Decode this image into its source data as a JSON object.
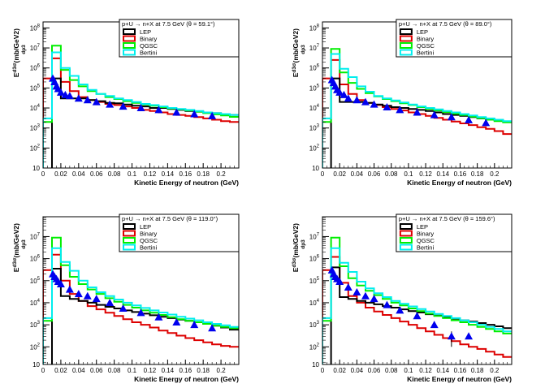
{
  "figure": {
    "legend_entries": [
      {
        "name": "LEP",
        "color": "#000000"
      },
      {
        "name": "Binary",
        "color": "#dd0000"
      },
      {
        "name": "QGSC",
        "color": "#00ee00"
      },
      {
        "name": "Bertini",
        "color": "#00eeee"
      }
    ],
    "marker_color": "#0000ee",
    "ylabel_main": "E",
    "ylabel_sup": "d",
    "ylabel_sup2": "3",
    "ylabel_sup3": "σ",
    "ylabel_sub": "dp",
    "ylabel_sub2": "3",
    "ylabel_unit": "(mb/GeV",
    "ylabel_unit_sup": "2",
    "ylabel_unit_end": ")"
  },
  "chart_data": [
    {
      "type": "line",
      "title": "p+U → n+X at 7.5 GeV (θ =  59.1°)",
      "xlabel": "Kinetic Energy of neutron (GeV)",
      "ylabel": "E d3σ/dp3 (mb/GeV2)",
      "xlim": [
        0,
        0.22
      ],
      "ylim": [
        10,
        100000000
      ],
      "yscale": "log",
      "x_ticks": [
        0,
        0.02,
        0.04,
        0.06,
        0.08,
        0.1,
        0.12,
        0.14,
        0.16,
        0.18,
        0.2
      ],
      "x_tick_labels": [
        "0",
        "0.02",
        "0.04",
        "0.06",
        "0.08",
        "0.1",
        "0.12",
        "0.14",
        "0.16",
        "0.18",
        "0.2"
      ],
      "y_tick_labels": [
        "10",
        "10^2",
        "10^3",
        "10^4",
        "10^5",
        "10^6",
        "10^7",
        "10^8"
      ],
      "grid": false,
      "legend_position": "top-right",
      "bin_edges": [
        0,
        0.01,
        0.02,
        0.03,
        0.04,
        0.05,
        0.06,
        0.07,
        0.08,
        0.09,
        0.1,
        0.11,
        0.12,
        0.13,
        0.14,
        0.15,
        0.16,
        0.17,
        0.18,
        0.19,
        0.2,
        0.21,
        0.22
      ],
      "series": [
        {
          "name": "LEP",
          "values": [
            null,
            300000,
            30000,
            30000,
            30000,
            25000,
            22000,
            18000,
            17000,
            15000,
            13000,
            12000,
            10000,
            10000,
            9000,
            8000,
            7000,
            6500,
            6000,
            5500,
            5000,
            4500
          ]
        },
        {
          "name": "Binary",
          "values": [
            300000,
            3000000,
            200000,
            70000,
            35000,
            25000,
            20000,
            16000,
            14000,
            12000,
            10000,
            8000,
            7000,
            6000,
            5000,
            4500,
            4000,
            3500,
            3000,
            2600,
            2200,
            2000
          ]
        },
        {
          "name": "QGSC",
          "values": [
            2000,
            13000000,
            800000,
            250000,
            120000,
            70000,
            50000,
            35000,
            28000,
            22000,
            18000,
            15000,
            13000,
            11000,
            9500,
            8500,
            7500,
            6500,
            5500,
            4800,
            4200,
            3600
          ]
        },
        {
          "name": "Bertini",
          "values": [
            3000,
            6000000,
            1000000,
            400000,
            150000,
            80000,
            50000,
            40000,
            30000,
            25000,
            20000,
            16000,
            14000,
            12000,
            10000,
            9000,
            8000,
            7000,
            6000,
            5500,
            5000,
            4500
          ]
        }
      ],
      "data_points": [
        {
          "x": 0.011,
          "y": 300000
        },
        {
          "x": 0.013,
          "y": 200000
        },
        {
          "x": 0.015,
          "y": 120000
        },
        {
          "x": 0.017,
          "y": 90000
        },
        {
          "x": 0.02,
          "y": 60000
        },
        {
          "x": 0.025,
          "y": 45000
        },
        {
          "x": 0.03,
          "y": 40000
        },
        {
          "x": 0.04,
          "y": 30000
        },
        {
          "x": 0.05,
          "y": 25000
        },
        {
          "x": 0.06,
          "y": 20000
        },
        {
          "x": 0.075,
          "y": 15000
        },
        {
          "x": 0.09,
          "y": 12000
        },
        {
          "x": 0.11,
          "y": 10000
        },
        {
          "x": 0.13,
          "y": 8000
        },
        {
          "x": 0.15,
          "y": 6000
        },
        {
          "x": 0.17,
          "y": 5000
        },
        {
          "x": 0.19,
          "y": 4000
        }
      ]
    },
    {
      "type": "line",
      "title": "p+U → n+X at 7.5 GeV (θ =  89.0°)",
      "xlabel": "Kinetic Energy of neutron (GeV)",
      "ylabel": "E d3σ/dp3 (mb/GeV2)",
      "xlim": [
        0,
        0.22
      ],
      "ylim": [
        10,
        100000000
      ],
      "yscale": "log",
      "x_ticks": [
        0,
        0.02,
        0.04,
        0.06,
        0.08,
        0.1,
        0.12,
        0.14,
        0.16,
        0.18,
        0.2
      ],
      "x_tick_labels": [
        "0",
        "0.02",
        "0.04",
        "0.06",
        "0.08",
        "0.1",
        "0.12",
        "0.14",
        "0.16",
        "0.18",
        "0.2"
      ],
      "y_tick_labels": [
        "10",
        "10^2",
        "10^3",
        "10^4",
        "10^5",
        "10^6",
        "10^7",
        "10^8"
      ],
      "grid": false,
      "legend_position": "top-right",
      "bin_edges": [
        0,
        0.01,
        0.02,
        0.03,
        0.04,
        0.05,
        0.06,
        0.07,
        0.08,
        0.09,
        0.1,
        0.11,
        0.12,
        0.13,
        0.14,
        0.15,
        0.16,
        0.17,
        0.18,
        0.19,
        0.2,
        0.21,
        0.22
      ],
      "series": [
        {
          "name": "LEP",
          "values": [
            null,
            300000,
            20000,
            20000,
            20000,
            18000,
            15000,
            13000,
            11000,
            10000,
            9000,
            8000,
            7000,
            6000,
            5000,
            4500,
            4000,
            3500,
            3000,
            2700,
            2400,
            2000
          ]
        },
        {
          "name": "Binary",
          "values": [
            300000,
            2500000,
            150000,
            50000,
            25000,
            18000,
            14000,
            11000,
            9000,
            7500,
            6000,
            5000,
            4000,
            3200,
            2600,
            2100,
            1700,
            1400,
            1100,
            900,
            700,
            500
          ]
        },
        {
          "name": "QGSC",
          "values": [
            2000,
            9000000,
            600000,
            180000,
            90000,
            55000,
            38000,
            28000,
            22000,
            17000,
            14000,
            11000,
            9000,
            7500,
            6200,
            5200,
            4400,
            3700,
            3100,
            2600,
            2200,
            1900
          ]
        },
        {
          "name": "Bertini",
          "values": [
            3000,
            5000000,
            900000,
            350000,
            120000,
            65000,
            40000,
            30000,
            24000,
            19000,
            15000,
            12000,
            10000,
            8500,
            7000,
            6000,
            5000,
            4200,
            3500,
            3000,
            2600,
            2200
          ]
        }
      ],
      "data_points": [
        {
          "x": 0.011,
          "y": 250000
        },
        {
          "x": 0.013,
          "y": 180000
        },
        {
          "x": 0.015,
          "y": 120000
        },
        {
          "x": 0.017,
          "y": 80000
        },
        {
          "x": 0.02,
          "y": 60000
        },
        {
          "x": 0.025,
          "y": 45000
        },
        {
          "x": 0.03,
          "y": 30000
        },
        {
          "x": 0.04,
          "y": 25000
        },
        {
          "x": 0.05,
          "y": 20000
        },
        {
          "x": 0.06,
          "y": 15000
        },
        {
          "x": 0.075,
          "y": 11000
        },
        {
          "x": 0.09,
          "y": 8000
        },
        {
          "x": 0.11,
          "y": 6000
        },
        {
          "x": 0.13,
          "y": 4500
        },
        {
          "x": 0.15,
          "y": 3500
        },
        {
          "x": 0.17,
          "y": 2500
        },
        {
          "x": 0.19,
          "y": 1800
        }
      ]
    },
    {
      "type": "line",
      "title": "p+U → n+X at 7.5 GeV (θ = 119.0°)",
      "xlabel": "Kinetic Energy of neutron (GeV)",
      "ylabel": "E d3σ/dp3 (mb/GeV2)",
      "xlim": [
        0,
        0.22
      ],
      "ylim": [
        10,
        100000000
      ],
      "yscale": "log",
      "x_ticks": [
        0,
        0.02,
        0.04,
        0.06,
        0.08,
        0.1,
        0.12,
        0.14,
        0.16,
        0.18,
        0.2
      ],
      "x_tick_labels": [
        "0",
        "0.02",
        "0.04",
        "0.06",
        "0.08",
        "0.1",
        "0.12",
        "0.14",
        "0.16",
        "0.18",
        "0.2"
      ],
      "y_tick_labels": [
        "10",
        "10^2",
        "10^3",
        "10^4",
        "10^5",
        "10^6",
        "10^7"
      ],
      "grid": false,
      "legend_position": "top-right",
      "bin_edges": [
        0,
        0.01,
        0.02,
        0.03,
        0.04,
        0.05,
        0.06,
        0.07,
        0.08,
        0.09,
        0.1,
        0.11,
        0.12,
        0.13,
        0.14,
        0.15,
        0.16,
        0.17,
        0.18,
        0.19,
        0.2,
        0.21,
        0.22
      ],
      "series": [
        {
          "name": "LEP",
          "values": [
            null,
            350000,
            20000,
            15000,
            12000,
            10000,
            8000,
            6500,
            5500,
            4500,
            3800,
            3200,
            2700,
            2300,
            2000,
            1700,
            1500,
            1300,
            1100,
            900,
            750,
            600
          ]
        },
        {
          "name": "Binary",
          "values": [
            300000,
            1500000,
            100000,
            25000,
            12000,
            7000,
            5000,
            3500,
            2500,
            1800,
            1300,
            1000,
            750,
            550,
            420,
            320,
            250,
            200,
            160,
            130,
            110,
            100
          ]
        },
        {
          "name": "QGSC",
          "values": [
            1500,
            9000000,
            500000,
            150000,
            70000,
            40000,
            25000,
            16000,
            11000,
            8000,
            6000,
            4500,
            3500,
            2800,
            2200,
            1800,
            1500,
            1300,
            1100,
            900,
            800,
            700
          ]
        },
        {
          "name": "Bertini",
          "values": [
            2000,
            3000000,
            700000,
            280000,
            100000,
            50000,
            30000,
            20000,
            14000,
            10000,
            7500,
            5800,
            4500,
            3600,
            2900,
            2300,
            1900,
            1600,
            1300,
            1100,
            950,
            800
          ]
        }
      ],
      "data_points": [
        {
          "x": 0.011,
          "y": 200000
        },
        {
          "x": 0.013,
          "y": 150000
        },
        {
          "x": 0.015,
          "y": 120000
        },
        {
          "x": 0.017,
          "y": 90000
        },
        {
          "x": 0.02,
          "y": 70000
        },
        {
          "x": 0.03,
          "y": 40000
        },
        {
          "x": 0.04,
          "y": 25000
        },
        {
          "x": 0.05,
          "y": 20000
        },
        {
          "x": 0.06,
          "y": 15000
        },
        {
          "x": 0.075,
          "y": 10000
        },
        {
          "x": 0.09,
          "y": 5500
        },
        {
          "x": 0.11,
          "y": 3500
        },
        {
          "x": 0.13,
          "y": 2200
        },
        {
          "x": 0.15,
          "y": 1300
        },
        {
          "x": 0.17,
          "y": 1000
        },
        {
          "x": 0.19,
          "y": 700
        }
      ]
    },
    {
      "type": "line",
      "title": "p+U → n+X at 7.5 GeV (θ = 159.6°)",
      "xlabel": "Kinetic Energy of neutron (GeV)",
      "ylabel": "E d3σ/dp3 (mb/GeV2)",
      "xlim": [
        0,
        0.22
      ],
      "ylim": [
        10,
        100000000
      ],
      "yscale": "log",
      "x_ticks": [
        0,
        0.02,
        0.04,
        0.06,
        0.08,
        0.1,
        0.12,
        0.14,
        0.16,
        0.18,
        0.2
      ],
      "x_tick_labels": [
        "0",
        "0.02",
        "0.04",
        "0.06",
        "0.08",
        "0.1",
        "0.12",
        "0.14",
        "0.16",
        "0.18",
        "0.2"
      ],
      "y_tick_labels": [
        "10",
        "10^2",
        "10^3",
        "10^4",
        "10^5",
        "10^6",
        "10^7"
      ],
      "grid": false,
      "legend_position": "top-right",
      "bin_edges": [
        0,
        0.01,
        0.02,
        0.03,
        0.04,
        0.05,
        0.06,
        0.07,
        0.08,
        0.09,
        0.1,
        0.11,
        0.12,
        0.13,
        0.14,
        0.15,
        0.16,
        0.17,
        0.18,
        0.19,
        0.2,
        0.21,
        0.22
      ],
      "series": [
        {
          "name": "LEP",
          "values": [
            null,
            400000,
            18000,
            15000,
            12000,
            10000,
            8500,
            7000,
            6000,
            5000,
            4200,
            3600,
            3000,
            2600,
            2200,
            1900,
            1600,
            1400,
            1200,
            1000,
            850,
            700
          ]
        },
        {
          "name": "Binary",
          "values": [
            300000,
            1200000,
            80000,
            20000,
            10000,
            6000,
            4000,
            2800,
            2000,
            1400,
            1000,
            700,
            500,
            350,
            250,
            180,
            130,
            100,
            80,
            60,
            45,
            35
          ]
        },
        {
          "name": "QGSC",
          "values": [
            1500,
            9000000,
            450000,
            130000,
            60000,
            35000,
            22000,
            15000,
            10000,
            7500,
            5500,
            4200,
            3200,
            2500,
            2000,
            1600,
            1300,
            1000,
            800,
            650,
            500,
            400
          ]
        },
        {
          "name": "Bertini",
          "values": [
            2000,
            3000000,
            650000,
            250000,
            90000,
            45000,
            27000,
            18000,
            12000,
            9000,
            6800,
            5200,
            4000,
            3100,
            2500,
            2000,
            1600,
            1300,
            1000,
            800,
            650,
            500
          ]
        }
      ],
      "data_points": [
        {
          "x": 0.011,
          "y": 300000
        },
        {
          "x": 0.013,
          "y": 200000
        },
        {
          "x": 0.015,
          "y": 150000
        },
        {
          "x": 0.017,
          "y": 120000
        },
        {
          "x": 0.02,
          "y": 90000
        },
        {
          "x": 0.03,
          "y": 50000
        },
        {
          "x": 0.04,
          "y": 30000
        },
        {
          "x": 0.05,
          "y": 20000
        },
        {
          "x": 0.06,
          "y": 15000
        },
        {
          "x": 0.075,
          "y": 8000
        },
        {
          "x": 0.09,
          "y": 4500
        },
        {
          "x": 0.11,
          "y": 2500
        },
        {
          "x": 0.13,
          "y": 1000
        },
        {
          "x": 0.15,
          "y": 300,
          "yerr": 200
        },
        {
          "x": 0.17,
          "y": 300
        }
      ]
    }
  ]
}
